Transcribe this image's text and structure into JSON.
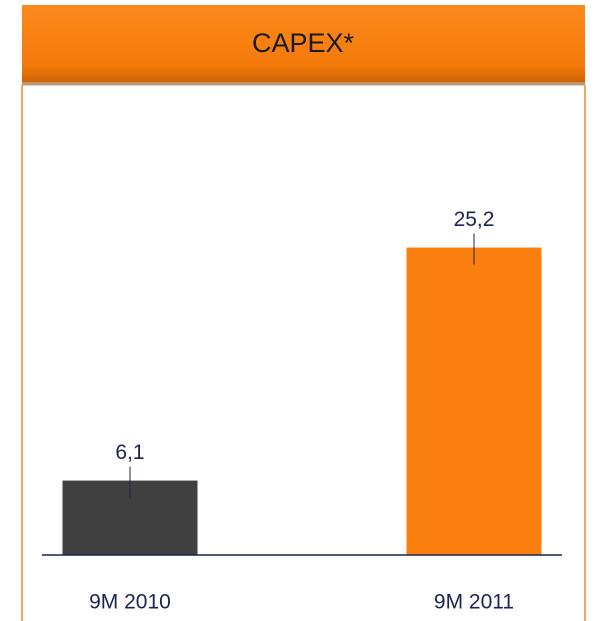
{
  "chart_data": {
    "type": "bar",
    "title": "CAPEX*",
    "categories": [
      "9M 2010",
      "9M 2011"
    ],
    "values": [
      6.1,
      25.2
    ],
    "value_labels": [
      "6,1",
      "25,2"
    ],
    "colors": [
      "#404040",
      "#fa7f0f"
    ]
  }
}
